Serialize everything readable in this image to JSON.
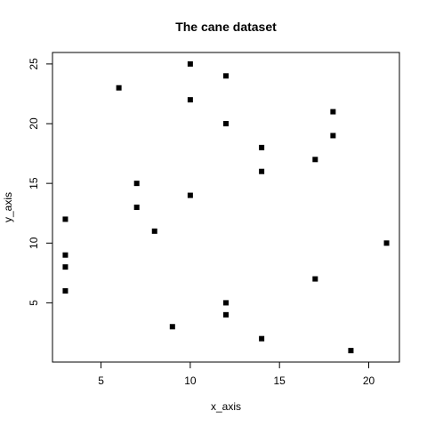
{
  "chart_data": {
    "type": "scatter",
    "title": "The cane dataset",
    "xlabel": "x_axis",
    "ylabel": "y_axis",
    "xlim": [
      2.28,
      21.72
    ],
    "ylim": [
      0.04,
      25.96
    ],
    "xticks": [
      5,
      10,
      15,
      20
    ],
    "yticks": [
      5,
      10,
      15,
      20,
      25
    ],
    "grid": false,
    "legend": "none",
    "marker": "square",
    "color": "#000000",
    "points": [
      {
        "x": 3,
        "y": 12
      },
      {
        "x": 3,
        "y": 9
      },
      {
        "x": 3,
        "y": 8
      },
      {
        "x": 3,
        "y": 6
      },
      {
        "x": 6,
        "y": 23
      },
      {
        "x": 7,
        "y": 15
      },
      {
        "x": 7,
        "y": 13
      },
      {
        "x": 8,
        "y": 11
      },
      {
        "x": 9,
        "y": 3
      },
      {
        "x": 10,
        "y": 25
      },
      {
        "x": 10,
        "y": 22
      },
      {
        "x": 10,
        "y": 14
      },
      {
        "x": 12,
        "y": 24
      },
      {
        "x": 12,
        "y": 20
      },
      {
        "x": 12,
        "y": 5
      },
      {
        "x": 12,
        "y": 4
      },
      {
        "x": 14,
        "y": 18
      },
      {
        "x": 14,
        "y": 16
      },
      {
        "x": 14,
        "y": 2
      },
      {
        "x": 17,
        "y": 17
      },
      {
        "x": 17,
        "y": 7
      },
      {
        "x": 18,
        "y": 21
      },
      {
        "x": 18,
        "y": 19
      },
      {
        "x": 19,
        "y": 1
      },
      {
        "x": 21,
        "y": 10
      }
    ]
  }
}
